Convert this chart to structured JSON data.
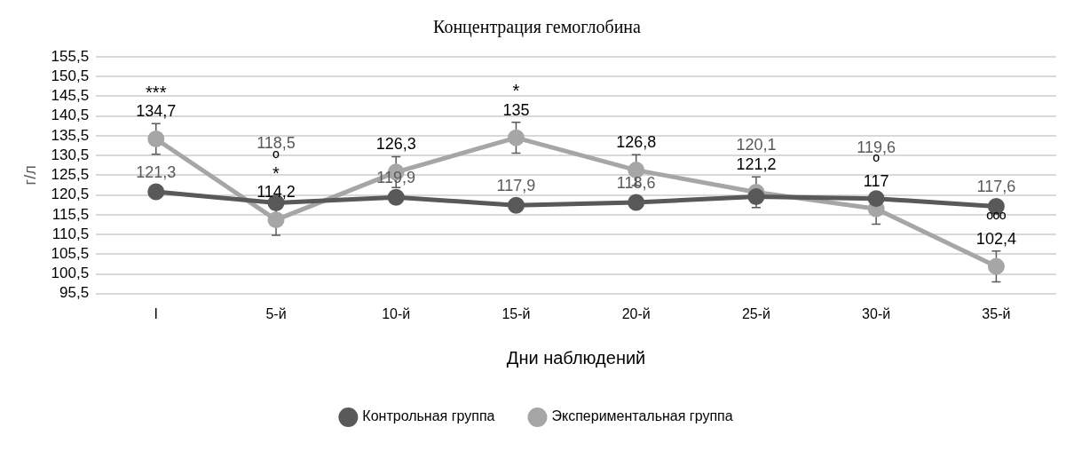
{
  "chart_data": {
    "type": "line",
    "title": "Концентрация гемоглобина",
    "xlabel": "Дни наблюдений",
    "ylabel": "г/л",
    "categories": [
      "I",
      "5-й",
      "10-й",
      "15-й",
      "20-й",
      "25-й",
      "30-й",
      "35-й"
    ],
    "series": [
      {
        "name": "Контрольная группа",
        "color": "#595959",
        "values": [
          121.3,
          118.5,
          119.9,
          117.9,
          118.6,
          120.1,
          119.6,
          117.6
        ],
        "value_labels": [
          "121,3",
          "118,5",
          "119,9",
          "117,9",
          "118,6",
          "120,1",
          "119,6",
          "117,6"
        ]
      },
      {
        "name": "Экспериментальная группа",
        "color": "#a6a6a6",
        "values": [
          134.7,
          114.2,
          126.3,
          135,
          126.8,
          121.2,
          117,
          102.4
        ],
        "value_labels": [
          "134,7",
          "114,2",
          "126,3",
          "135",
          "126,8",
          "121,2",
          "117",
          "102,4"
        ],
        "errors": [
          3.9,
          3.9,
          3.9,
          3.9,
          3.9,
          3.9,
          3.9,
          3.9
        ]
      }
    ],
    "ylim": [
      95.5,
      155.5
    ],
    "yticks": [
      {
        "value": 95.5,
        "label": "95,5"
      },
      {
        "value": 100.5,
        "label": "100,5"
      },
      {
        "value": 105.5,
        "label": "105,5"
      },
      {
        "value": 110.5,
        "label": "110,5"
      },
      {
        "value": 115.5,
        "label": "115,5"
      },
      {
        "value": 120.5,
        "label": "120,5"
      },
      {
        "value": 125.5,
        "label": "125,5"
      },
      {
        "value": 130.5,
        "label": "130,5"
      },
      {
        "value": 135.5,
        "label": "135,5"
      },
      {
        "value": 140.5,
        "label": "140,5"
      },
      {
        "value": 145.5,
        "label": "145,5"
      },
      {
        "value": 150.5,
        "label": "150,5"
      },
      {
        "value": 155.5,
        "label": "155,5"
      }
    ],
    "annotations": [
      {
        "text": "***",
        "x": "I",
        "y": 134.7
      },
      {
        "text": "*",
        "x": "5-й",
        "y": 114.2
      },
      {
        "text": "º",
        "x": "5-й",
        "y": 114.2
      },
      {
        "text": "*",
        "x": "15-й",
        "y": 135
      },
      {
        "text": "º",
        "x": "30-й",
        "y": 117
      },
      {
        "text": "ººº",
        "x": "35-й",
        "y": 102.4
      }
    ],
    "grid": "y",
    "legend": "bottom",
    "marker": "circle",
    "line_style": "solid"
  }
}
